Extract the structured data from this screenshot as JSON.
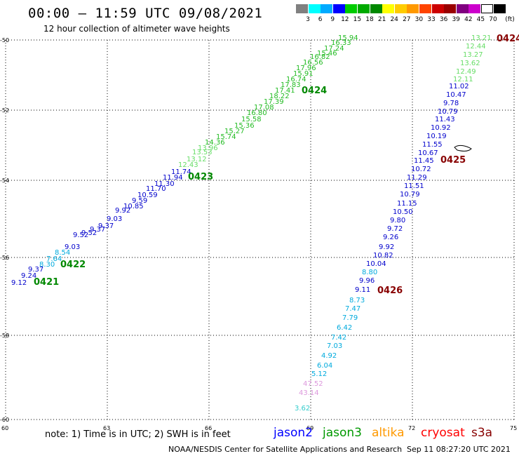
{
  "title": "00:00 – 11:59 UTC 09/08/2021",
  "subtitle": "12 hour collection of altimeter wave heights",
  "colorbar": {
    "unit": "(ft)",
    "colors": [
      "#808080",
      "#00ffff",
      "#00aaff",
      "#0000ff",
      "#00cc00",
      "#00aa00",
      "#008800",
      "#ffff00",
      "#ffcc00",
      "#ff9900",
      "#ff4400",
      "#cc0000",
      "#990000",
      "#800080",
      "#cc00cc",
      "#ffffff",
      "#000000"
    ],
    "labels": [
      "3",
      "6",
      "9",
      "12",
      "15",
      "18",
      "21",
      "24",
      "27",
      "30",
      "33",
      "36",
      "39",
      "42",
      "45",
      "70"
    ]
  },
  "axes": {
    "x_ticks": [
      "60",
      "63",
      "66",
      "69",
      "72",
      "75"
    ],
    "y_ticks": [
      "-50",
      "-52",
      "-54",
      "-56",
      "-58",
      "-60"
    ]
  },
  "tracks": [
    {
      "id": "0421",
      "pass": "0421",
      "color": "#008800",
      "labels": [
        {
          "t": "9.12",
          "c": "#0000cc"
        },
        {
          "t": "9.24",
          "c": "#0000cc"
        },
        {
          "t": "9.37",
          "c": "#0000cc"
        }
      ]
    },
    {
      "id": "0422",
      "pass": "0422",
      "color": "#008800",
      "labels": [
        {
          "t": "8.30",
          "c": "#00aadd"
        },
        {
          "t": "7.64",
          "c": "#00aadd"
        },
        {
          "t": "8.54",
          "c": "#00aadd"
        },
        {
          "t": "9.03",
          "c": "#0000cc"
        },
        {
          "t": "9.52",
          "c": "#0000cc"
        },
        {
          "t": "9.52",
          "c": "#0000cc"
        },
        {
          "t": "9.37",
          "c": "#0000cc"
        },
        {
          "t": "9.37",
          "c": "#0000cc"
        },
        {
          "t": "9.03",
          "c": "#0000cc"
        },
        {
          "t": "9.92",
          "c": "#0000cc"
        },
        {
          "t": "10.85",
          "c": "#0000cc"
        },
        {
          "t": "9.59",
          "c": "#0000cc"
        },
        {
          "t": "10.59",
          "c": "#0000cc"
        },
        {
          "t": "11.70",
          "c": "#0000cc"
        },
        {
          "t": "11.30",
          "c": "#0000cc"
        },
        {
          "t": "11.94",
          "c": "#0000cc"
        },
        {
          "t": "11.74",
          "c": "#0000cc"
        }
      ]
    },
    {
      "id": "0423",
      "pass": "0423",
      "color": "#008800",
      "labels": [
        {
          "t": "12.43",
          "c": "#66dd66"
        },
        {
          "t": "13.12",
          "c": "#66dd66"
        },
        {
          "t": "13.53",
          "c": "#66dd66"
        },
        {
          "t": "13.96",
          "c": "#66dd66"
        },
        {
          "t": "14.36",
          "c": "#22bb22"
        },
        {
          "t": "15.74",
          "c": "#22bb22"
        },
        {
          "t": "15.27",
          "c": "#22bb22"
        },
        {
          "t": "15.36",
          "c": "#22bb22"
        },
        {
          "t": "15.58",
          "c": "#22bb22"
        },
        {
          "t": "16.80",
          "c": "#22bb22"
        },
        {
          "t": "17.08",
          "c": "#22bb22"
        },
        {
          "t": "17.39",
          "c": "#22bb22"
        },
        {
          "t": "18.22",
          "c": "#22bb22"
        },
        {
          "t": "17.41",
          "c": "#22bb22"
        },
        {
          "t": "17.83",
          "c": "#22bb22"
        },
        {
          "t": "16.74",
          "c": "#22bb22"
        },
        {
          "t": "15.91",
          "c": "#22bb22"
        },
        {
          "t": "17.96",
          "c": "#22bb22"
        },
        {
          "t": "16.56",
          "c": "#22bb22"
        },
        {
          "t": "16.82",
          "c": "#22bb22"
        },
        {
          "t": "15.46",
          "c": "#22bb22"
        },
        {
          "t": "17.24",
          "c": "#22bb22"
        },
        {
          "t": "16.33",
          "c": "#22bb22"
        },
        {
          "t": "15.94",
          "c": "#22bb22"
        }
      ]
    },
    {
      "id": "0424",
      "pass": "0424",
      "color": "#008800",
      "labels": []
    },
    {
      "id": "0424b",
      "pass": "0424",
      "color": "#880000",
      "labels": [
        {
          "t": "13.21",
          "c": "#66dd66"
        },
        {
          "t": "12.44",
          "c": "#66dd66"
        },
        {
          "t": "13.27",
          "c": "#66dd66"
        },
        {
          "t": "13.62",
          "c": "#66dd66"
        },
        {
          "t": "12.49",
          "c": "#66dd66"
        },
        {
          "t": "12.11",
          "c": "#66dd66"
        },
        {
          "t": "11.02",
          "c": "#0000cc"
        },
        {
          "t": "10.47",
          "c": "#0000cc"
        },
        {
          "t": "9.78",
          "c": "#0000cc"
        },
        {
          "t": "10.79",
          "c": "#0000cc"
        },
        {
          "t": "11.43",
          "c": "#0000cc"
        },
        {
          "t": "10.92",
          "c": "#0000cc"
        },
        {
          "t": "10.19",
          "c": "#0000cc"
        },
        {
          "t": "11.55",
          "c": "#0000cc"
        },
        {
          "t": "10.67",
          "c": "#0000cc"
        },
        {
          "t": "11.45",
          "c": "#0000cc"
        }
      ]
    },
    {
      "id": "0425",
      "pass": "0425",
      "color": "#880000",
      "labels": [
        {
          "t": "10.72",
          "c": "#0000cc"
        },
        {
          "t": "11.29",
          "c": "#0000cc"
        },
        {
          "t": "11.51",
          "c": "#0000cc"
        },
        {
          "t": "10.79",
          "c": "#0000cc"
        },
        {
          "t": "11.15",
          "c": "#0000cc"
        },
        {
          "t": "10.50",
          "c": "#0000cc"
        },
        {
          "t": "9.80",
          "c": "#0000cc"
        },
        {
          "t": "9.72",
          "c": "#0000cc"
        },
        {
          "t": "9.26",
          "c": "#0000cc"
        },
        {
          "t": "9.92",
          "c": "#0000cc"
        },
        {
          "t": "10.82",
          "c": "#0000cc"
        },
        {
          "t": "10.04",
          "c": "#0000cc"
        },
        {
          "t": "8.80",
          "c": "#00aadd"
        },
        {
          "t": "9.96",
          "c": "#0000cc"
        },
        {
          "t": "9.11",
          "c": "#0000cc"
        }
      ]
    },
    {
      "id": "0426",
      "pass": "0426",
      "color": "#880000",
      "labels": [
        {
          "t": "8.73",
          "c": "#00aadd"
        },
        {
          "t": "7.47",
          "c": "#00aadd"
        },
        {
          "t": "7.79",
          "c": "#00aadd"
        },
        {
          "t": "6.42",
          "c": "#00aadd"
        },
        {
          "t": "7.42",
          "c": "#00aadd"
        },
        {
          "t": "7.03",
          "c": "#00aadd"
        },
        {
          "t": "4.92",
          "c": "#00aadd"
        },
        {
          "t": "6.04",
          "c": "#00aadd"
        },
        {
          "t": "5.12",
          "c": "#00aadd"
        },
        {
          "t": "47.52",
          "c": "#dd99dd"
        },
        {
          "t": "43.14",
          "c": "#dd99dd"
        },
        {
          "t": "3.62",
          "c": "#33cccc"
        }
      ]
    }
  ],
  "note": "note:  1) Time is in UTC;  2) SWH is in feet",
  "satellites": [
    {
      "name": "jason2",
      "color": "#0000ff"
    },
    {
      "name": "jason3",
      "color": "#009900"
    },
    {
      "name": "altika",
      "color": "#ff9900"
    },
    {
      "name": "cryosat",
      "color": "#ff0000"
    },
    {
      "name": "s3a",
      "color": "#880000"
    }
  ],
  "footer": "NOAA/NESDIS Center for Satellite Applications and Research",
  "timestamp": "Sep 11 08:27:20 UTC 2021"
}
